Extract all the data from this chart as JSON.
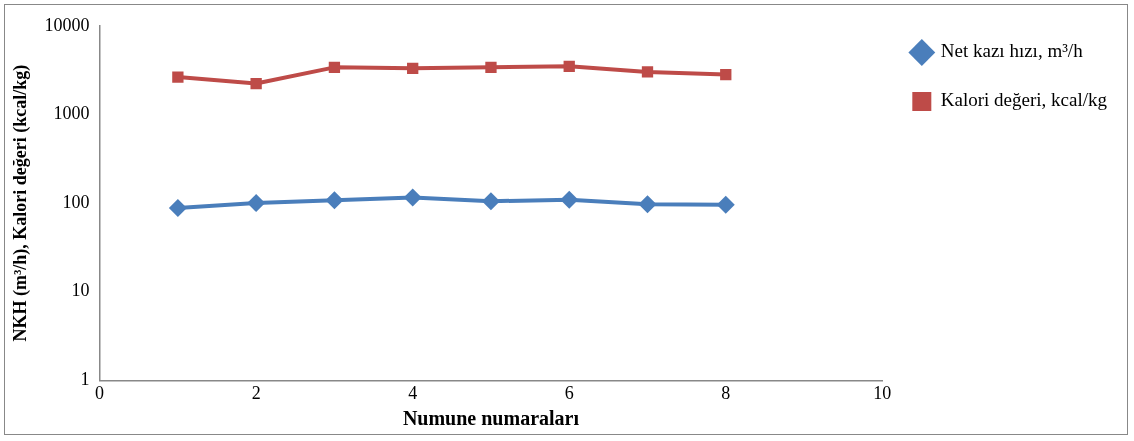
{
  "chart_data": {
    "type": "line",
    "xlabel": "Numune numaraları",
    "ylabel": "NKH (m³/h), Kalori değeri (kcal/kg)",
    "x": [
      1,
      2,
      3,
      4,
      5,
      6,
      7,
      8
    ],
    "series": [
      {
        "name": "Net kazı hızı, m³/h",
        "color": "#4a7ebb",
        "marker": "diamond",
        "values": [
          88,
          100,
          108,
          116,
          105,
          109,
          97,
          96
        ]
      },
      {
        "name": "Kalori değeri, kcal/kg",
        "color": "#be4b48",
        "marker": "square",
        "values": [
          2640,
          2230,
          3400,
          3310,
          3400,
          3490,
          3020,
          2820
        ]
      }
    ],
    "xlim": [
      0,
      10
    ],
    "xticks": [
      0,
      2,
      4,
      6,
      8,
      10
    ],
    "ylim": [
      1,
      10000
    ],
    "yticks": [
      1,
      10,
      100,
      1000,
      10000
    ],
    "log": "y",
    "grid": false,
    "legend": "right"
  }
}
